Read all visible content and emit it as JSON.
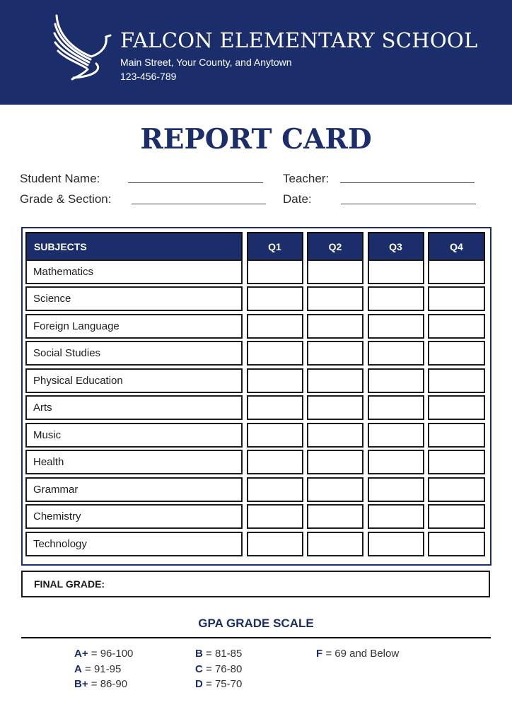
{
  "header": {
    "school_name": "FALCON ELEMENTARY SCHOOL",
    "address": "Main Street, Your County, and Anytown",
    "phone": "123-456-789",
    "logo_icon": "falcon-logo-icon",
    "brand_color": "#1b2d6b"
  },
  "title": "REPORT CARD",
  "fields": {
    "student_name": "Student Name:",
    "teacher": "Teacher:",
    "grade_section": "Grade & Section:",
    "date": "Date:"
  },
  "table": {
    "headers": [
      "SUBJECTS",
      "Q1",
      "Q2",
      "Q3",
      "Q4"
    ],
    "subjects": [
      "Mathematics",
      "Science",
      "Foreign Language",
      "Social Studies",
      "Physical Education",
      "Arts",
      "Music",
      "Health",
      "Grammar",
      "Chemistry",
      "Technology"
    ],
    "final_grade": "FINAL GRADE:"
  },
  "gpa": {
    "title": "GPA GRADE SCALE",
    "columns": [
      [
        {
          "grade": "A+",
          "range": "= 96-100"
        },
        {
          "grade": "A",
          "range": "= 91-95"
        },
        {
          "grade": "B+",
          "range": "= 86-90"
        }
      ],
      [
        {
          "grade": "B",
          "range": "= 81-85"
        },
        {
          "grade": "C",
          "range": "= 76-80"
        },
        {
          "grade": "D",
          "range": "= 75-70"
        }
      ],
      [
        {
          "grade": "F",
          "range": "= 69 and Below"
        }
      ]
    ]
  }
}
